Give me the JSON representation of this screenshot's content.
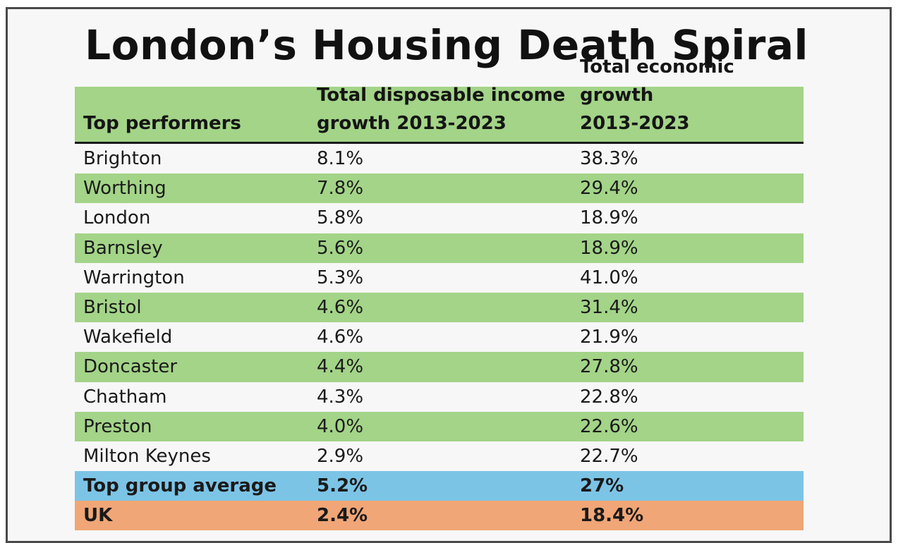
{
  "title": "London’s Housing Death Spiral",
  "table": {
    "headers": {
      "col1": "Top performers",
      "col2_line1": "Total disposable income",
      "col2_line2": "growth 2013-2023",
      "col3_line1": "Total economic growth",
      "col3_line2": "2013-2023"
    },
    "rows": [
      {
        "place": "Brighton",
        "income": "8.1%",
        "economic": "38.3%"
      },
      {
        "place": "Worthing",
        "income": "7.8%",
        "economic": "29.4%"
      },
      {
        "place": "London",
        "income": "5.8%",
        "economic": "18.9%"
      },
      {
        "place": "Barnsley",
        "income": "5.6%",
        "economic": "18.9%"
      },
      {
        "place": "Warrington",
        "income": "5.3%",
        "economic": "41.0%"
      },
      {
        "place": "Bristol",
        "income": "4.6%",
        "economic": "31.4%"
      },
      {
        "place": "Wakefield",
        "income": "4.6%",
        "economic": "21.9%"
      },
      {
        "place": "Doncaster",
        "income": "4.4%",
        "economic": "27.8%"
      },
      {
        "place": "Chatham",
        "income": "4.3%",
        "economic": "22.8%"
      },
      {
        "place": "Preston",
        "income": "4.0%",
        "economic": "22.6%"
      },
      {
        "place": "Milton Keynes",
        "income": "2.9%",
        "economic": "22.7%"
      }
    ],
    "average": {
      "place": "Top group average",
      "income": "5.2%",
      "economic": "27%"
    },
    "uk": {
      "place": "UK",
      "income": "2.4%",
      "economic": "18.4%"
    }
  },
  "colors": {
    "green_band": "#a3d488",
    "average_band": "#7cc4e6",
    "uk_band": "#f0a676"
  }
}
